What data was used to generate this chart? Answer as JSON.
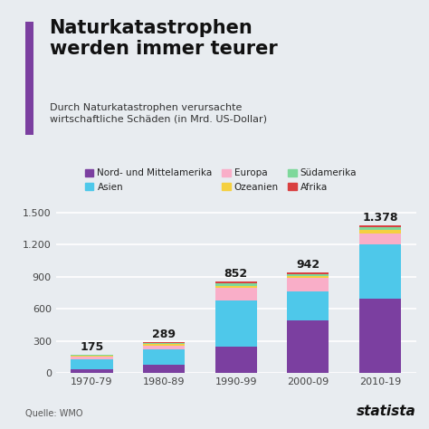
{
  "title": "Naturkatastrophen\nwerden immer teurer",
  "subtitle": "Durch Naturkatastrophen verursachte\nwirtschaftliche Schäden (in Mrd. US-Dollar)",
  "source": "Quelle: WMO",
  "categories": [
    "1970-79",
    "1980-89",
    "1990-99",
    "2000-09",
    "2010-19"
  ],
  "totals": [
    175,
    289,
    852,
    942,
    1378
  ],
  "regions": [
    "Nord- und Mittelamerika",
    "Asien",
    "Europa",
    "Ozeanien",
    "Südamerika",
    "Afrika"
  ],
  "colors": [
    "#7b3fa0",
    "#4ec8ea",
    "#f9aec8",
    "#f5d040",
    "#7ed89b",
    "#d94040"
  ],
  "data": {
    "Nord- und Mittelamerika": [
      40,
      80,
      250,
      490,
      695
    ],
    "Asien": [
      90,
      140,
      430,
      270,
      510
    ],
    "Europa": [
      25,
      40,
      115,
      130,
      100
    ],
    "Ozeanien": [
      8,
      12,
      20,
      20,
      35
    ],
    "Südamerika": [
      7,
      10,
      22,
      17,
      23
    ],
    "Afrika": [
      5,
      7,
      15,
      15,
      15
    ]
  },
  "ylim": [
    0,
    1600
  ],
  "yticks": [
    0,
    300,
    600,
    900,
    1200,
    1500
  ],
  "ytick_labels": [
    "0",
    "300",
    "600",
    "900",
    "1.200",
    "1.500"
  ],
  "bg_color": "#e8ecf0",
  "accent_color": "#7b3fa0",
  "title_fontsize": 15,
  "subtitle_fontsize": 8,
  "tick_fontsize": 8,
  "total_label_fontsize": 9,
  "legend_fontsize": 7.5
}
